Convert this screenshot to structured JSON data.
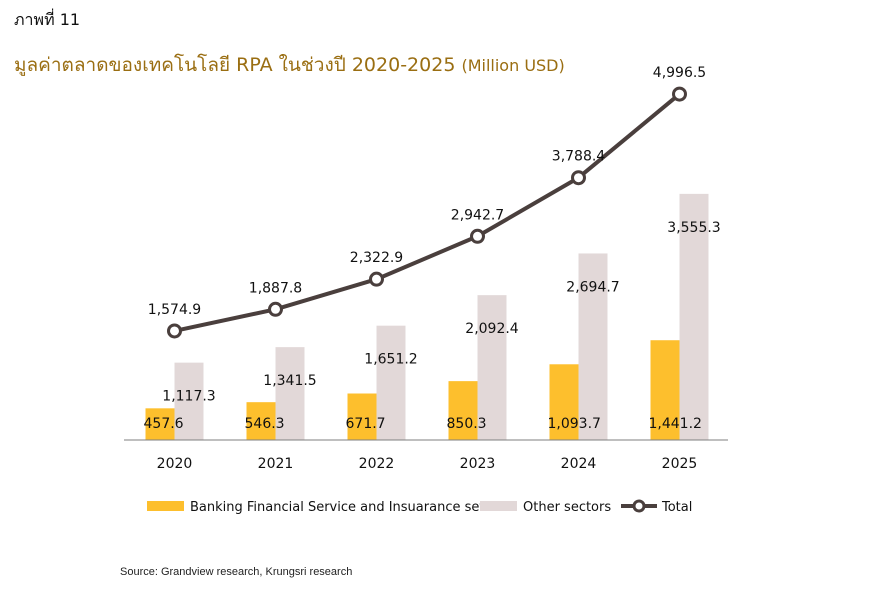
{
  "figure_label": "ภาพที่ 11",
  "title": "มูลค่าตลาดของเทคโนโลยี RPA ในช่วงปี 2020-2025",
  "title_unit": "(Million USD)",
  "source": "Source: Grandview research, Krungsri research",
  "colors": {
    "banking": "#fdbf2d",
    "other": "#e2d8d8",
    "total": "#4a3f3d",
    "title": "#9a6e12"
  },
  "chart_data": {
    "type": "bar",
    "categories": [
      "2020",
      "2021",
      "2022",
      "2023",
      "2024",
      "2025"
    ],
    "series": [
      {
        "name": "Banking Financial Service and Insuarance setor",
        "type": "bar",
        "values": [
          457.6,
          546.3,
          671.7,
          850.3,
          1093.7,
          1441.2
        ],
        "labels": [
          "457.6",
          "546.3",
          "671.7",
          "850.3",
          "1,093.7",
          "1,441.2"
        ]
      },
      {
        "name": "Other sectors",
        "type": "bar",
        "values": [
          1117.3,
          1341.5,
          1651.2,
          2092.4,
          2694.7,
          3555.3
        ],
        "labels": [
          "1,117.3",
          "1,341.5",
          "1,651.2",
          "2,092.4",
          "2,694.7",
          "3,555.3"
        ]
      },
      {
        "name": "Total",
        "type": "line",
        "values": [
          1574.9,
          1887.8,
          2322.9,
          2942.7,
          3788.4,
          4996.5
        ],
        "labels": [
          "1,574.9",
          "1,887.8",
          "2,322.9",
          "2,942.7",
          "3,788.4",
          "4,996.5"
        ]
      }
    ],
    "xlabel": "",
    "ylabel": "",
    "ylim": [
      0,
      5200
    ],
    "grid": false,
    "legend_position": "bottom"
  }
}
